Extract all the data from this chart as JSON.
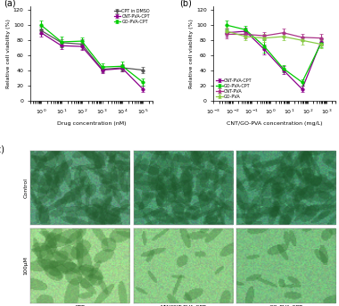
{
  "panel_a": {
    "title": "(a)",
    "xlabel": "Drug concentration (nM)",
    "ylabel": "Relative cell viability (%)",
    "ylim": [
      0,
      125
    ],
    "yticks": [
      0,
      20,
      40,
      60,
      80,
      100,
      120
    ],
    "series": [
      {
        "label": "CPT in DMSO",
        "color": "#555555",
        "x": [
          1,
          10,
          100,
          1000,
          10000,
          100000
        ],
        "y": [
          93,
          77,
          75,
          42,
          44,
          41
        ],
        "yerr": [
          5,
          5,
          6,
          4,
          5,
          4
        ]
      },
      {
        "label": "CNT-PVA-CPT",
        "color": "#8B008B",
        "x": [
          1,
          10,
          100,
          1000,
          10000,
          100000
        ],
        "y": [
          90,
          73,
          72,
          41,
          43,
          16
        ],
        "yerr": [
          5,
          5,
          5,
          4,
          4,
          4
        ]
      },
      {
        "label": "GO-PVA-CPT",
        "color": "#00CC00",
        "x": [
          1,
          10,
          100,
          1000,
          10000,
          100000
        ],
        "y": [
          100,
          78,
          79,
          45,
          46,
          25
        ],
        "yerr": [
          6,
          7,
          5,
          5,
          6,
          5
        ]
      }
    ]
  },
  "panel_b": {
    "title": "(b)",
    "xlabel": "CNT/GO-PVA concentration (mg/L)",
    "ylabel": "Relative cell viability (%)",
    "ylim": [
      0,
      125
    ],
    "yticks": [
      0,
      20,
      40,
      60,
      80,
      100,
      120
    ],
    "series": [
      {
        "label": "CNT-PVA-CPT",
        "color": "#8B008B",
        "x": [
          0.005,
          0.05,
          0.5,
          5,
          50,
          500
        ],
        "y": [
          90,
          92,
          68,
          41,
          16,
          78
        ],
        "yerr": [
          5,
          5,
          7,
          5,
          4,
          5
        ]
      },
      {
        "label": "GO-PVA-CPT",
        "color": "#00CC00",
        "x": [
          0.005,
          0.05,
          0.5,
          5,
          50,
          500
        ],
        "y": [
          100,
          94,
          72,
          43,
          25,
          76
        ],
        "yerr": [
          6,
          5,
          8,
          5,
          4,
          5
        ]
      },
      {
        "label": "CNT-PVA",
        "color": "#AA3388",
        "x": [
          0.005,
          0.05,
          0.5,
          5,
          50,
          500
        ],
        "y": [
          88,
          88,
          86,
          90,
          84,
          83
        ],
        "yerr": [
          5,
          5,
          5,
          5,
          5,
          5
        ]
      },
      {
        "label": "GO-PVA",
        "color": "#88CC44",
        "x": [
          0.005,
          0.05,
          0.5,
          5,
          50,
          500
        ],
        "y": [
          92,
          85,
          83,
          85,
          80,
          75
        ],
        "yerr": [
          5,
          5,
          5,
          5,
          5,
          5
        ]
      }
    ]
  },
  "panel_c": {
    "title": "(c)",
    "row_labels": [
      "Control",
      "100μM"
    ],
    "col_labels": [
      "CPT",
      "MWCNT-PVA-CPT",
      "GO-PVA-CPT"
    ],
    "bg_colors_top": [
      "#5a9e7a",
      "#4e9972",
      "#4a9770"
    ],
    "bg_colors_bottom": [
      "#a0d890",
      "#8ecc88",
      "#7abf80"
    ]
  }
}
